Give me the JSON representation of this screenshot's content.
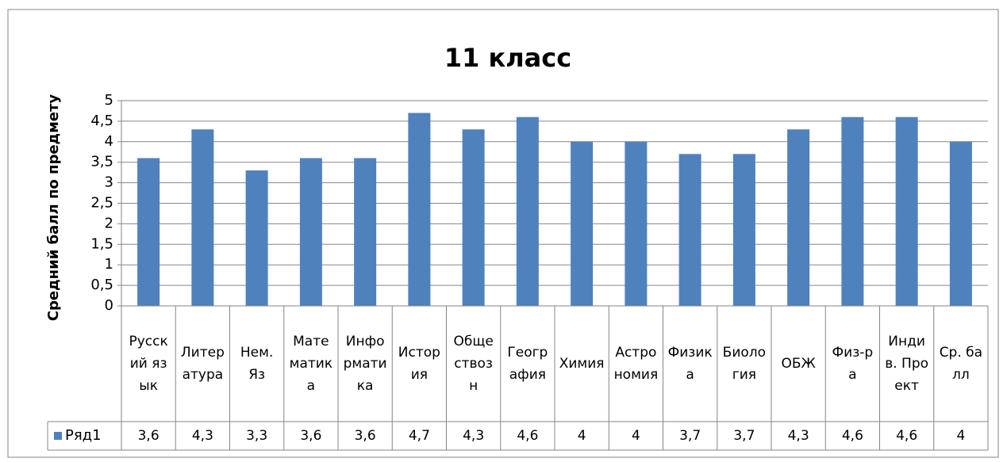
{
  "chart_data": {
    "type": "bar",
    "title": "11 класс",
    "y_label": "Средний балл по предмету",
    "categories": [
      "Русский язык",
      "Литература",
      "Нем. Яз",
      "Математика",
      "Информатика",
      "История",
      "Обществозн",
      "География",
      "Химия",
      "Астрономия",
      "Физика",
      "Биология",
      "ОБЖ",
      "Физ-ра",
      "Индив. Проект",
      "Ср. балл"
    ],
    "series": [
      {
        "name": "Ряд1",
        "color": "#4f81bd",
        "values": [
          3.6,
          4.3,
          3.3,
          3.6,
          3.6,
          4.7,
          4.3,
          4.6,
          4,
          4,
          3.7,
          3.7,
          4.3,
          4.6,
          4.6,
          4
        ],
        "value_labels": [
          "3,6",
          "4,3",
          "3,3",
          "3,6",
          "3,6",
          "4,7",
          "4,3",
          "4,6",
          "4",
          "4",
          "3,7",
          "3,7",
          "4,3",
          "4,6",
          "4,6",
          "4"
        ]
      }
    ],
    "ylim": [
      0,
      5
    ],
    "yticks": [
      0,
      {
        "value": 0.5,
        "label": "0,5"
      },
      1,
      {
        "value": 1.5,
        "label": "1,5"
      },
      2,
      {
        "value": 2.5,
        "label": "2,5"
      },
      3,
      {
        "value": 3.5,
        "label": "3,5"
      },
      4,
      {
        "value": 4.5,
        "label": "4,5"
      },
      5
    ],
    "grid": true,
    "legend": "data-table"
  }
}
